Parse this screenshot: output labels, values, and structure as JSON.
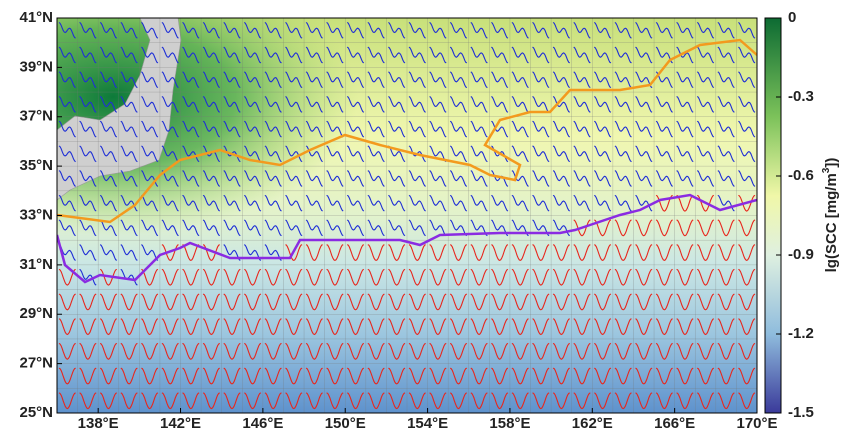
{
  "map": {
    "lon_lim": [
      136,
      170
    ],
    "lat_lim": [
      25,
      41
    ],
    "lon_ticks": [
      {
        "value": 138,
        "label": "138°E"
      },
      {
        "value": 142,
        "label": "142°E"
      },
      {
        "value": 146,
        "label": "146°E"
      },
      {
        "value": 150,
        "label": "150°E"
      },
      {
        "value": 154,
        "label": "154°E"
      },
      {
        "value": 158,
        "label": "158°E"
      },
      {
        "value": 162,
        "label": "162°E"
      },
      {
        "value": 166,
        "label": "166°E"
      },
      {
        "value": 170,
        "label": "170°E"
      }
    ],
    "lat_ticks": [
      {
        "value": 25,
        "label": "25°N"
      },
      {
        "value": 27,
        "label": "27°N"
      },
      {
        "value": 29,
        "label": "29°N"
      },
      {
        "value": 31,
        "label": "31°N"
      },
      {
        "value": 33,
        "label": "33°N"
      },
      {
        "value": 35,
        "label": "35°N"
      },
      {
        "value": 37,
        "label": "37°N"
      },
      {
        "value": 39,
        "label": "39°N"
      },
      {
        "value": 41,
        "label": "41°N"
      }
    ],
    "colorbar": {
      "lim": [
        -1.5,
        0
      ],
      "ticks": [
        0,
        -0.3,
        -0.6,
        -0.9,
        -1.2,
        -1.5
      ],
      "label": {
        "text": "lg(SCC [mg/m",
        "sup": "3",
        "end": "])"
      }
    }
  }
}
